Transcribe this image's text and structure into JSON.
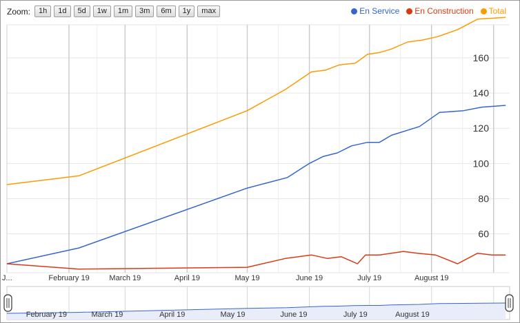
{
  "zoom": {
    "label": "Zoom:",
    "buttons": [
      "1h",
      "1d",
      "5d",
      "1w",
      "1m",
      "3m",
      "6m",
      "1y",
      "max"
    ]
  },
  "legend": [
    {
      "label": "En Service",
      "color": "#3366cc"
    },
    {
      "label": "En Construction",
      "color": "#dc3912"
    },
    {
      "label": "Total",
      "color": "#ff9900"
    }
  ],
  "chart_data": {
    "type": "line",
    "title": "",
    "xlabel": "",
    "ylabel": "",
    "ylim": [
      40,
      175
    ],
    "xlim": [
      "2019-01-01",
      "2019-09-07"
    ],
    "grid": true,
    "legend_position": "top-right",
    "y_ticks": [
      "60",
      "80",
      "100",
      "120",
      "140",
      "160"
    ],
    "x_ticks": [
      "J...",
      "February 19",
      "March 19",
      "April 19",
      "May 19",
      "June 19",
      "July 19",
      "August 19"
    ],
    "navigator_ticks": [
      "February 19",
      "March 19",
      "April 19",
      "May 19",
      "June 19",
      "July 19",
      "August 19"
    ],
    "series": [
      {
        "name": "En Service",
        "color": "#3366cc",
        "points": [
          [
            "2019-01-01",
            43
          ],
          [
            "2019-02-06",
            52
          ],
          [
            "2019-05-01",
            86
          ],
          [
            "2019-05-21",
            92
          ],
          [
            "2019-06-01",
            100
          ],
          [
            "2019-06-08",
            104
          ],
          [
            "2019-06-15",
            106
          ],
          [
            "2019-06-22",
            110
          ],
          [
            "2019-06-30",
            112
          ],
          [
            "2019-07-06",
            112
          ],
          [
            "2019-07-12",
            116
          ],
          [
            "2019-07-26",
            121
          ],
          [
            "2019-08-05",
            129
          ],
          [
            "2019-08-17",
            130
          ],
          [
            "2019-08-26",
            132
          ],
          [
            "2019-09-07",
            133
          ]
        ]
      },
      {
        "name": "En Construction",
        "color": "#dc3912",
        "points": [
          [
            "2019-01-01",
            43
          ],
          [
            "2019-02-06",
            40
          ],
          [
            "2019-05-01",
            41
          ],
          [
            "2019-05-20",
            46
          ],
          [
            "2019-06-02",
            48
          ],
          [
            "2019-06-10",
            46
          ],
          [
            "2019-06-17",
            47
          ],
          [
            "2019-06-25",
            43
          ],
          [
            "2019-06-29",
            48
          ],
          [
            "2019-07-06",
            48
          ],
          [
            "2019-07-18",
            50
          ],
          [
            "2019-07-25",
            49
          ],
          [
            "2019-08-03",
            48
          ],
          [
            "2019-08-14",
            43
          ],
          [
            "2019-08-24",
            49
          ],
          [
            "2019-08-31",
            48
          ],
          [
            "2019-09-07",
            48
          ]
        ]
      },
      {
        "name": "Total",
        "color": "#ff9900",
        "points": [
          [
            "2019-01-01",
            88
          ],
          [
            "2019-02-06",
            93
          ],
          [
            "2019-05-01",
            130
          ],
          [
            "2019-05-20",
            142
          ],
          [
            "2019-06-02",
            152
          ],
          [
            "2019-06-09",
            153
          ],
          [
            "2019-06-16",
            156
          ],
          [
            "2019-06-24",
            157
          ],
          [
            "2019-06-30",
            162
          ],
          [
            "2019-07-06",
            163
          ],
          [
            "2019-07-12",
            165
          ],
          [
            "2019-07-20",
            169
          ],
          [
            "2019-07-27",
            170
          ],
          [
            "2019-08-04",
            172
          ],
          [
            "2019-08-14",
            176
          ],
          [
            "2019-08-24",
            182
          ],
          [
            "2019-09-07",
            183
          ]
        ]
      }
    ]
  }
}
